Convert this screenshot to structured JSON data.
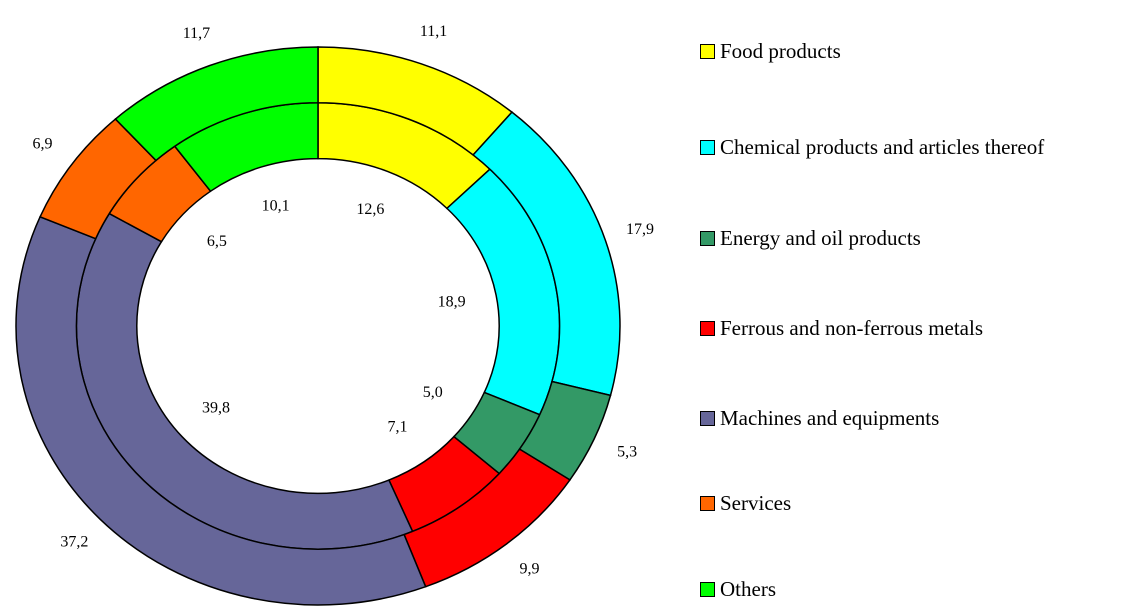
{
  "chart_data": {
    "type": "doughnut",
    "categories": [
      "Food products",
      "Chemical products and articles thereof",
      "Energy and oil products",
      "Ferrous and non-ferrous metals",
      "Machines and equipments",
      "Services",
      "Others"
    ],
    "colors": [
      "#ffff00",
      "#00ffff",
      "#339966",
      "#ff0000",
      "#666699",
      "#ff6600",
      "#00ff00"
    ],
    "series": [
      {
        "values": [
          12.6,
          18.9,
          5.0,
          7.1,
          39.8,
          6.5,
          10.1
        ],
        "value_labels": [
          "12,6",
          "18,9",
          "5,0",
          "7,1",
          "39,8",
          "6,5",
          "10,1"
        ]
      },
      {
        "values": [
          11.1,
          17.9,
          5.3,
          9.9,
          37.2,
          6.9,
          11.7
        ],
        "value_labels": [
          "11,1",
          "17,9",
          "5,3",
          "9,9",
          "37,2",
          "6,9",
          "11,7"
        ]
      }
    ],
    "legend": "right"
  }
}
